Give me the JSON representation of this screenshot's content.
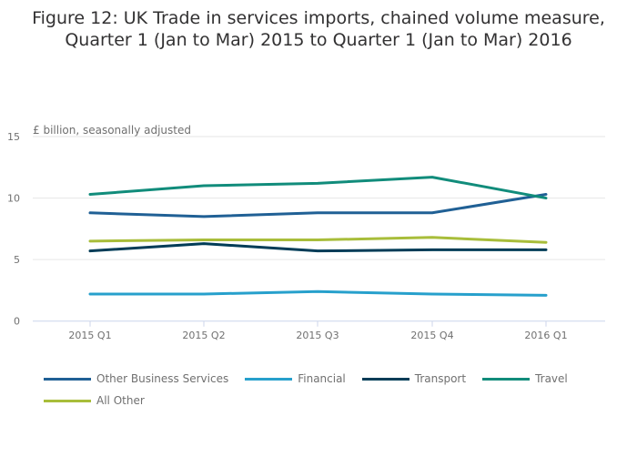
{
  "chart_data": {
    "type": "line",
    "title": "Figure 12: UK Trade in services imports, chained volume measure, Quarter 1 (Jan to Mar) 2015 to Quarter 1 (Jan to Mar) 2016",
    "ylabel": "£ billion, seasonally adjusted",
    "xlabel": "",
    "categories": [
      "2015 Q1",
      "2015 Q2",
      "2015 Q3",
      "2015 Q4",
      "2016 Q1"
    ],
    "ylim": [
      0,
      15
    ],
    "yticks": [
      "0",
      "5",
      "10",
      "15"
    ],
    "grid": true,
    "legend_position": "bottom",
    "series": [
      {
        "name": "Other Business Services",
        "color": "#206095",
        "values": [
          8.8,
          8.5,
          8.8,
          8.8,
          10.3
        ]
      },
      {
        "name": "Financial",
        "color": "#27a0cc",
        "values": [
          2.2,
          2.2,
          2.4,
          2.2,
          2.1
        ]
      },
      {
        "name": "Transport",
        "color": "#003c57",
        "values": [
          5.7,
          6.3,
          5.7,
          5.8,
          5.8
        ]
      },
      {
        "name": "Travel",
        "color": "#118c7b",
        "values": [
          10.3,
          11.0,
          11.2,
          11.7,
          10.0
        ]
      },
      {
        "name": "All Other",
        "color": "#a8bd3a",
        "values": [
          6.5,
          6.6,
          6.6,
          6.8,
          6.4
        ]
      }
    ]
  }
}
